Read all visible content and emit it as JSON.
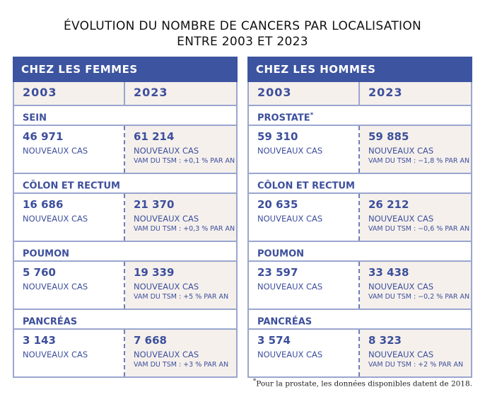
{
  "title": {
    "line1": "ÉVOLUTION DU NOMBRE DE CANCERS PAR LOCALISATION",
    "line2": "ENTRE 2003 ET 2023"
  },
  "tables": [
    {
      "header": "CHEZ LES FEMMES",
      "year1": "2003",
      "year2": "2023",
      "sections": [
        {
          "name": "SEIN",
          "mark": "",
          "v1": "46 971",
          "v2": "61 214",
          "label": "NOUVEAUX CAS",
          "vam": "VAM DU TSM : +0,1 % PAR AN"
        },
        {
          "name": "CÔLON ET RECTUM",
          "mark": "",
          "v1": "16 686",
          "v2": "21 370",
          "label": "NOUVEAUX CAS",
          "vam": "VAM DU TSM : +0,3 % PAR AN"
        },
        {
          "name": "POUMON",
          "mark": "",
          "v1": "5 760",
          "v2": "19 339",
          "label": "NOUVEAUX CAS",
          "vam": "VAM DU TSM : +5 % PAR AN"
        },
        {
          "name": "PANCRÉAS",
          "mark": "",
          "v1": "3 143",
          "v2": "7 668",
          "label": "NOUVEAUX CAS",
          "vam": "VAM DU TSM : +3 % PAR AN"
        }
      ]
    },
    {
      "header": "CHEZ LES HOMMES",
      "year1": "2003",
      "year2": "2023",
      "sections": [
        {
          "name": "PROSTATE",
          "mark": "*",
          "v1": "59 310",
          "v2": "59 885",
          "label": "NOUVEAUX CAS",
          "vam": "VAM DU TSM : −1,8 % PAR AN"
        },
        {
          "name": "CÔLON ET RECTUM",
          "mark": "",
          "v1": "20 635",
          "v2": "26 212",
          "label": "NOUVEAUX CAS",
          "vam": "VAM DU TSM : −0,6 % PAR AN"
        },
        {
          "name": "POUMON",
          "mark": "",
          "v1": "23 597",
          "v2": "33 438",
          "label": "NOUVEAUX CAS",
          "vam": "VAM DU TSM : −0,2 % PAR AN"
        },
        {
          "name": "PANCRÉAS",
          "mark": "",
          "v1": "3 574",
          "v2": "8 323",
          "label": "NOUVEAUX CAS",
          "vam": "VAM DU TSM : +2 % PAR AN"
        }
      ]
    }
  ],
  "footnote": {
    "mark": "*",
    "text": "Pour la prostate, les données disponibles datent de 2018."
  },
  "colors": {
    "header_bg": "#3d54a0",
    "text": "#3d4f9c",
    "beige": "#f5f0ec",
    "border": "#9aa6cf"
  }
}
